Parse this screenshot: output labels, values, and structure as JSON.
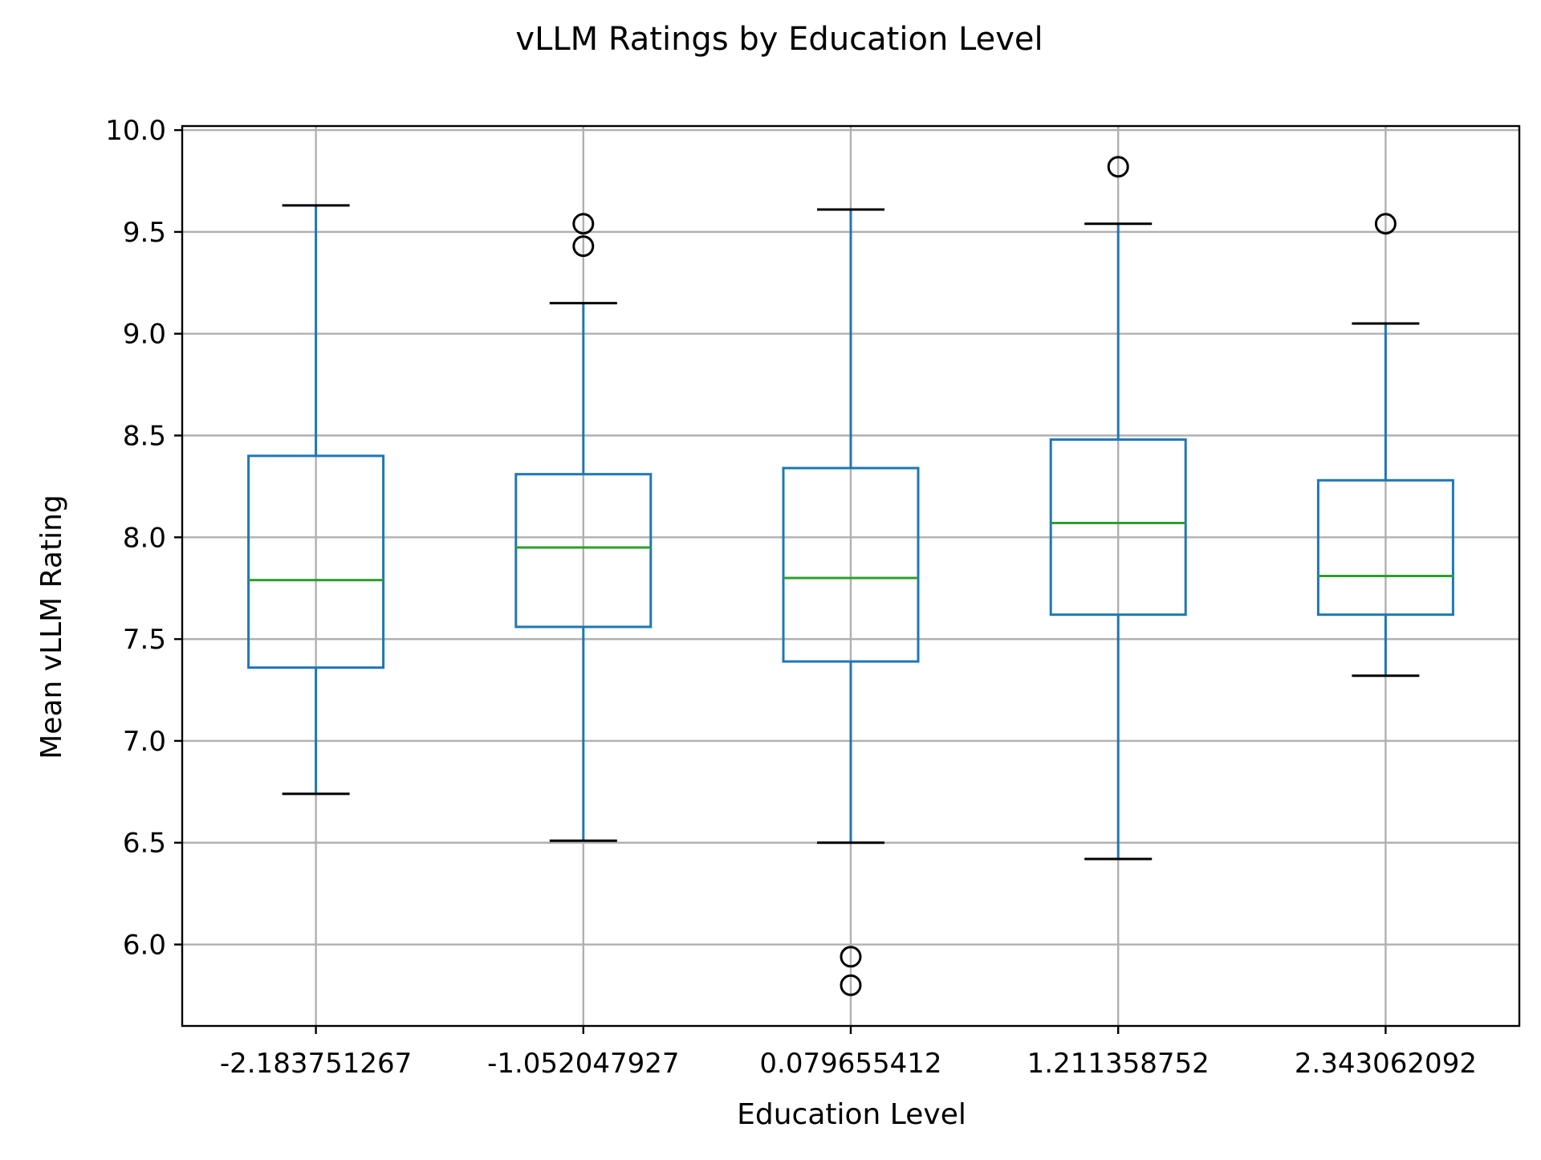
{
  "chart_data": {
    "type": "box",
    "title": "vLLM Ratings by Education Level",
    "xlabel": "Education Level",
    "ylabel": "Mean vLLM Rating",
    "categories": [
      "-2.183751267",
      "-1.052047927",
      "0.079655412",
      "1.211358752",
      "2.343062092"
    ],
    "boxes": [
      {
        "whisker_low": 6.74,
        "q1": 7.36,
        "median": 7.79,
        "q3": 8.4,
        "whisker_high": 9.63,
        "outliers": []
      },
      {
        "whisker_low": 6.51,
        "q1": 7.56,
        "median": 7.95,
        "q3": 8.31,
        "whisker_high": 9.15,
        "outliers": [
          9.43,
          9.54
        ]
      },
      {
        "whisker_low": 6.5,
        "q1": 7.39,
        "median": 7.8,
        "q3": 8.34,
        "whisker_high": 9.61,
        "outliers": [
          5.8,
          5.94
        ]
      },
      {
        "whisker_low": 6.42,
        "q1": 7.62,
        "median": 8.07,
        "q3": 8.48,
        "whisker_high": 9.54,
        "outliers": [
          9.82
        ]
      },
      {
        "whisker_low": 7.32,
        "q1": 7.62,
        "median": 7.81,
        "q3": 8.28,
        "whisker_high": 9.05,
        "outliers": [
          9.54
        ]
      }
    ],
    "yticks": [
      "6.0",
      "6.5",
      "7.0",
      "7.5",
      "8.0",
      "8.5",
      "9.0",
      "9.5",
      "10.0"
    ],
    "ylim": [
      5.6,
      10.02
    ],
    "grid": true,
    "colors": {
      "box": "#1f77b4",
      "median": "#2ca02c",
      "caps": "#000000",
      "outlier": "#000000",
      "grid": "#b0b0b0",
      "axes": "#000000"
    }
  }
}
